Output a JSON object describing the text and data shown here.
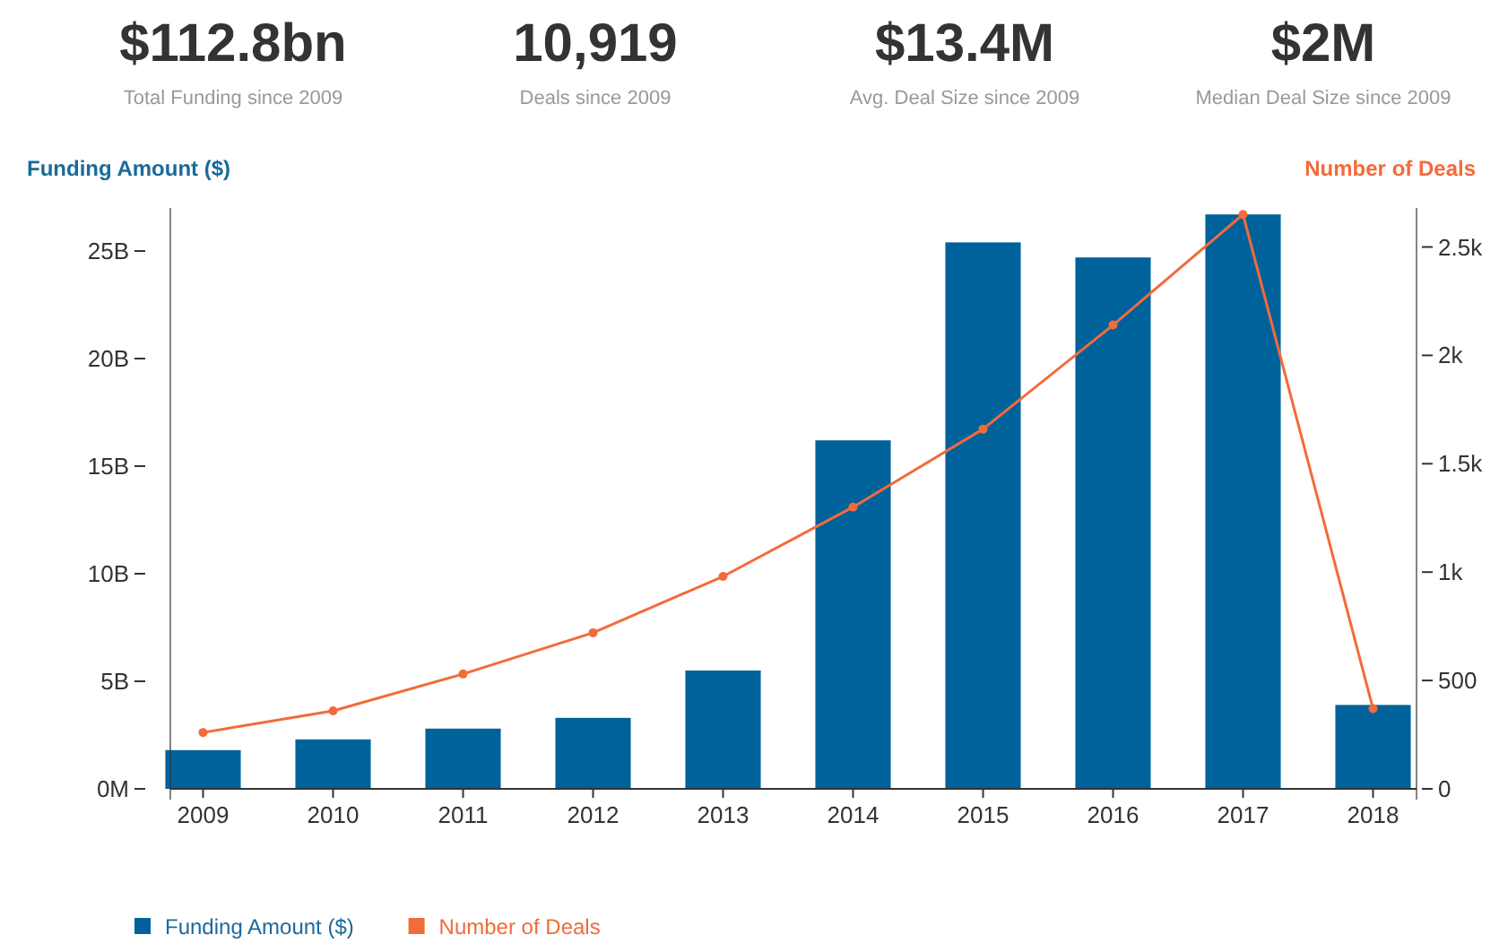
{
  "chart_data": {
    "type": "bar",
    "annotations": [
      "$112.8bn",
      "Total Funding since 2009",
      "10,919",
      "Deals since 2009",
      "$13.4M",
      "Avg. Deal Size since 2009",
      "$2M",
      "Median Deal Size since 2009"
    ],
    "ylabel": "Funding Amount ($)",
    "y2label": "Number of Deals",
    "categories": [
      "2009",
      "2010",
      "2011",
      "2012",
      "2013",
      "2014",
      "2015",
      "2016",
      "2017",
      "2018"
    ],
    "series": [
      {
        "name": "Funding Amount ($)",
        "color": "#00629b",
        "values": [
          1.8,
          2.3,
          2.8,
          3.3,
          5.5,
          16.2,
          25.4,
          24.7,
          26.7,
          3.9
        ]
      },
      {
        "name": "Number of Deals",
        "type": "line",
        "axis": "y2",
        "color": "#f26b3a",
        "marker": "circle",
        "values": [
          260,
          360,
          530,
          720,
          980,
          1300,
          1660,
          2140,
          2650,
          370
        ]
      }
    ],
    "ylim": [
      0,
      27
    ],
    "yticks": [
      {
        "value": 0,
        "label": "0M"
      },
      {
        "value": 5,
        "label": "5B"
      },
      {
        "value": 10,
        "label": "10B"
      },
      {
        "value": 15,
        "label": "15B"
      },
      {
        "value": 20,
        "label": "20B"
      },
      {
        "value": 25,
        "label": "25B"
      }
    ],
    "y2lim": [
      0,
      2680
    ],
    "y2ticks": [
      0,
      500,
      {
        "value": 1000,
        "label": "1k"
      },
      {
        "value": 1500,
        "label": "1.5k"
      },
      {
        "value": 2000,
        "label": "2k"
      },
      {
        "value": 2500,
        "label": "2.5k"
      }
    ],
    "grid": false,
    "legend": "bottom left"
  }
}
